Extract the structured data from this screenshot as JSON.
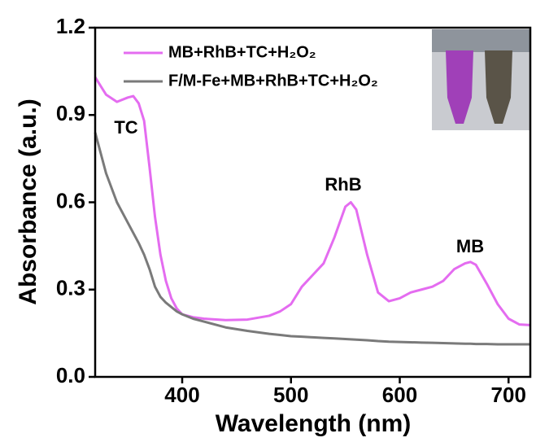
{
  "chart_data": {
    "type": "line",
    "x_label": "Wavelength (nm)",
    "y_label": "Absorbance (a.u.)",
    "x": [
      320,
      330,
      340,
      350,
      355,
      360,
      365,
      370,
      375,
      380,
      385,
      390,
      395,
      400,
      410,
      420,
      440,
      460,
      480,
      490,
      500,
      510,
      520,
      530,
      540,
      550,
      555,
      560,
      570,
      580,
      590,
      600,
      610,
      620,
      630,
      640,
      650,
      660,
      665,
      670,
      680,
      690,
      700,
      710,
      720
    ],
    "series": [
      {
        "name": "MB+RhB+TC+H₂O₂",
        "color": "#e46cf0",
        "values": [
          1.03,
          0.97,
          0.945,
          0.96,
          0.965,
          0.94,
          0.88,
          0.72,
          0.55,
          0.42,
          0.33,
          0.27,
          0.235,
          0.215,
          0.205,
          0.2,
          0.195,
          0.197,
          0.21,
          0.225,
          0.25,
          0.31,
          0.35,
          0.39,
          0.48,
          0.585,
          0.6,
          0.575,
          0.42,
          0.29,
          0.26,
          0.27,
          0.29,
          0.3,
          0.31,
          0.33,
          0.37,
          0.39,
          0.395,
          0.385,
          0.32,
          0.25,
          0.2,
          0.18,
          0.178
        ]
      },
      {
        "name": "F/M-Fe+MB+RhB+TC+H₂O₂",
        "color": "#7a7a7a",
        "values": [
          0.84,
          0.7,
          0.6,
          0.53,
          0.495,
          0.46,
          0.42,
          0.37,
          0.31,
          0.275,
          0.255,
          0.24,
          0.225,
          0.215,
          0.2,
          0.19,
          0.17,
          0.158,
          0.148,
          0.144,
          0.14,
          0.138,
          0.136,
          0.134,
          0.132,
          0.13,
          0.129,
          0.128,
          0.126,
          0.123,
          0.121,
          0.12,
          0.119,
          0.118,
          0.117,
          0.116,
          0.115,
          0.114,
          0.114,
          0.113,
          0.113,
          0.112,
          0.112,
          0.112,
          0.112
        ]
      }
    ],
    "annotations": [
      "TC",
      "RhB",
      "MB"
    ],
    "xlim": [
      320,
      720
    ],
    "ylim": [
      0,
      1.2
    ],
    "xticks": [
      400,
      500,
      600,
      700
    ],
    "yticks": [
      {
        "value": 0,
        "label": "0.0"
      },
      0.3,
      0.6,
      0.9,
      1.2
    ]
  }
}
